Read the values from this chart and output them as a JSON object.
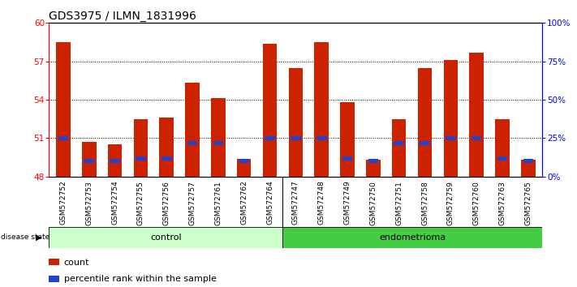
{
  "title": "GDS3975 / ILMN_1831996",
  "samples": [
    "GSM572752",
    "GSM572753",
    "GSM572754",
    "GSM572755",
    "GSM572756",
    "GSM572757",
    "GSM572761",
    "GSM572762",
    "GSM572764",
    "GSM572747",
    "GSM572748",
    "GSM572749",
    "GSM572750",
    "GSM572751",
    "GSM572758",
    "GSM572759",
    "GSM572760",
    "GSM572763",
    "GSM572765"
  ],
  "count_values": [
    58.5,
    50.7,
    50.5,
    52.5,
    52.6,
    55.3,
    54.1,
    49.4,
    58.4,
    56.5,
    58.5,
    53.8,
    49.3,
    52.5,
    56.5,
    57.1,
    57.7,
    52.5,
    49.3
  ],
  "percentile_values": [
    51.0,
    49.2,
    49.2,
    49.4,
    49.4,
    50.6,
    50.6,
    49.2,
    51.0,
    51.0,
    51.0,
    49.4,
    49.2,
    50.6,
    50.6,
    51.0,
    51.0,
    49.4,
    49.2
  ],
  "bar_color": "#cc2200",
  "blue_color": "#2244cc",
  "ylim_left": [
    48,
    60
  ],
  "ylim_right": [
    0,
    100
  ],
  "yticks_left": [
    48,
    51,
    54,
    57,
    60
  ],
  "yticks_right": [
    0,
    25,
    50,
    75,
    100
  ],
  "ytick_labels_right": [
    "0%",
    "25%",
    "50%",
    "75%",
    "100%"
  ],
  "n_control": 9,
  "n_endo": 10,
  "control_color": "#ccffcc",
  "endometrioma_color": "#44cc44",
  "control_label": "control",
  "endometrioma_label": "endometrioma",
  "disease_state_label": "disease state",
  "legend_count": "count",
  "legend_percentile": "percentile rank within the sample",
  "bar_width": 0.55,
  "title_fontsize": 10,
  "tick_fontsize": 6.5,
  "label_fontsize": 8
}
